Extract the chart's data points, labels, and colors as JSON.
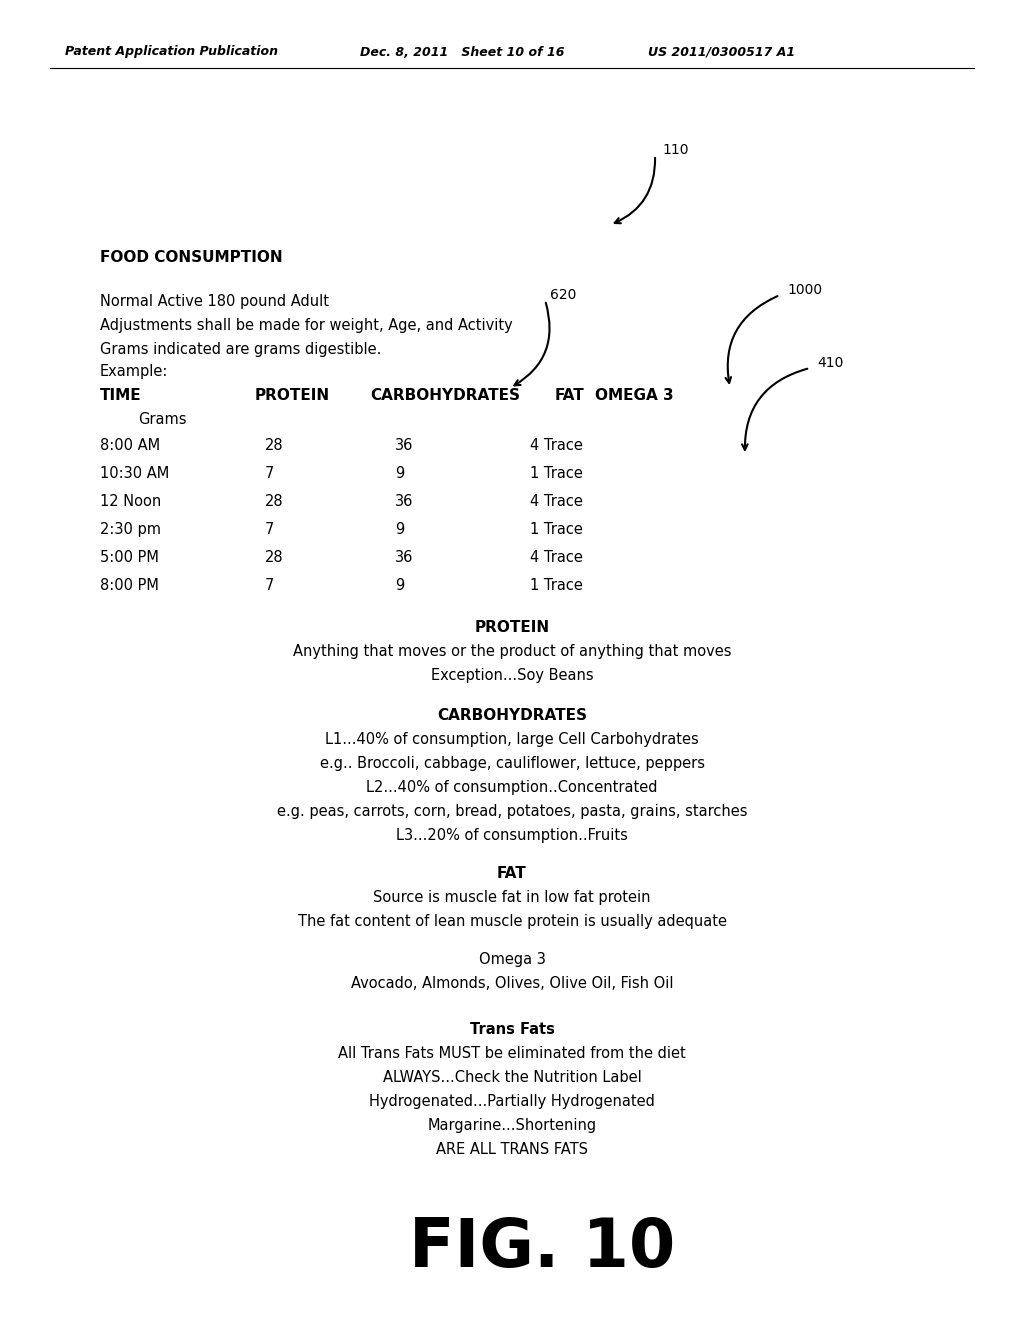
{
  "background_color": "#ffffff",
  "header_left": "Patent Application Publication",
  "header_middle": "Dec. 8, 2011   Sheet 10 of 16",
  "header_right": "US 2011/0300517 A1",
  "label_110": "110",
  "label_620": "620",
  "label_1000": "1000",
  "label_410": "410",
  "food_consumption_title": "FOOD CONSUMPTION",
  "normal_active": "Normal Active 180 pound Adult",
  "adjustments": "Adjustments shall be made for weight, Age, and Activity",
  "grams_indicated": "Grams indicated are grams digestible.",
  "example": "Example:",
  "time_header": "TIME",
  "protein_header": "PROTEIN",
  "carbo_header": "CARBOHYDRATES",
  "fat_header": "FAT",
  "omega_header": "OMEGA 3",
  "grams_label": "Grams",
  "table_rows": [
    [
      "8:00 AM",
      "28",
      "36",
      "4 Trace"
    ],
    [
      "10:30 AM",
      "7",
      "9",
      "1 Trace"
    ],
    [
      "12 Noon",
      "28",
      "36",
      "4 Trace"
    ],
    [
      "2:30 pm",
      "7",
      "9",
      "1 Trace"
    ],
    [
      "5:00 PM",
      "28",
      "36",
      "4 Trace"
    ],
    [
      "8:00 PM",
      "7",
      "9",
      "1 Trace"
    ]
  ],
  "protein_section_title": "PROTEIN",
  "protein_line1": "Anything that moves or the product of anything that moves",
  "protein_line2": "Exception...Soy Beans",
  "carb_section_title": "CARBOHYDRATES",
  "carb_line1": "L1...40% of consumption, large Cell Carbohydrates",
  "carb_line2": "e.g.. Broccoli, cabbage, cauliflower, lettuce, peppers",
  "carb_line3": "L2...40% of consumption..Concentrated",
  "carb_line4": "e.g. peas, carrots, corn, bread, potatoes, pasta, grains, starches",
  "carb_line5": "L3...20% of consumption..Fruits",
  "fat_section_title": "FAT",
  "fat_line1": "Source is muscle fat in low fat protein",
  "fat_line2": "The fat content of lean muscle protein is usually adequate",
  "omega3_title": "Omega 3",
  "omega3_line1": "Avocado, Almonds, Olives, Olive Oil, Fish Oil",
  "trans_title": "Trans Fats",
  "trans_line1": "All Trans Fats MUST be eliminated from the diet",
  "trans_line2": "ALWAYS...Check the Nutrition Label",
  "trans_line3": "Hydrogenated...Partially Hydrogenated",
  "trans_line4": "Margarine...Shortening",
  "trans_line5": "ARE ALL TRANS FATS",
  "fig_label": "FIG. 10"
}
